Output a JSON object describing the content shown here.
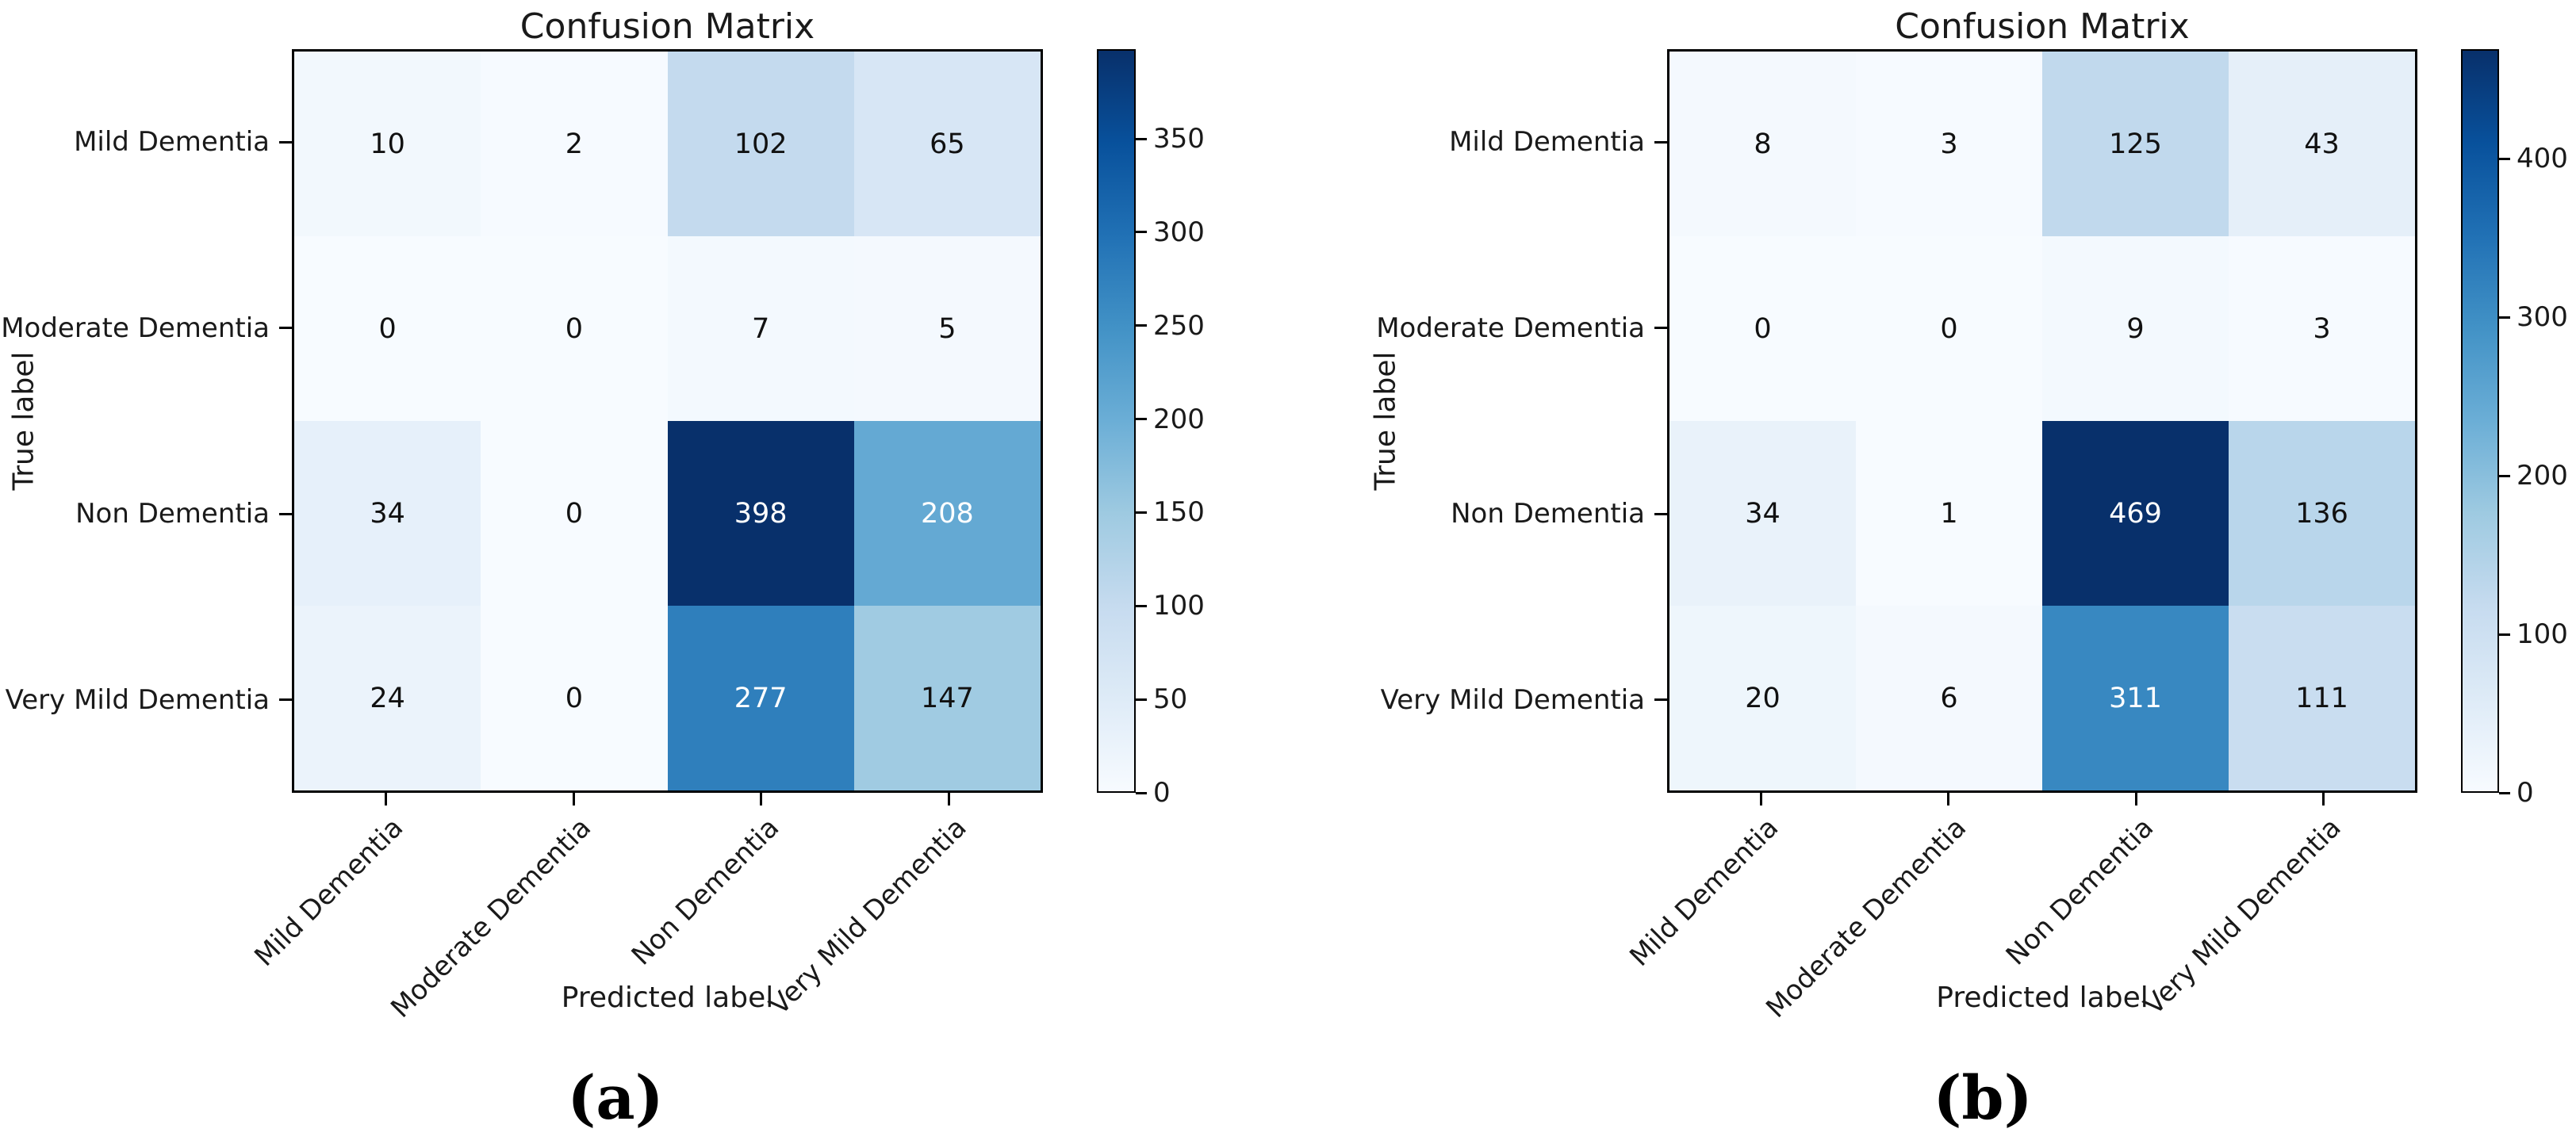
{
  "page": {
    "background": "#ffffff"
  },
  "colors": {
    "colormap_blues_anchors": [
      "#f7fbff",
      "#deebf7",
      "#c6dbef",
      "#9ecae1",
      "#6baed6",
      "#4292c6",
      "#2171b5",
      "#08519c",
      "#08306b"
    ],
    "cell_text_dark": "#111111",
    "cell_text_light": "#ffffff",
    "axis_text": "#1a1a1a",
    "spine": "#000000"
  },
  "chart_data": [
    {
      "type": "heatmap",
      "title": "Confusion Matrix",
      "caption": "(a)",
      "xlabel": "Predicted label",
      "ylabel": "True label",
      "x_categories": [
        "Mild Dementia",
        "Moderate Dementia",
        "Non Dementia",
        "Very Mild Dementia"
      ],
      "y_categories": [
        "Mild Dementia",
        "Moderate Dementia",
        "Non Dementia",
        "Very Mild Dementia"
      ],
      "values": [
        [
          10,
          2,
          102,
          65
        ],
        [
          0,
          0,
          7,
          5
        ],
        [
          34,
          0,
          398,
          208
        ],
        [
          24,
          0,
          277,
          147
        ]
      ],
      "vmin": 0,
      "vmax": 398,
      "colormap": "Blues",
      "grid": false,
      "x_tick_rotation_deg": 45,
      "colorbar": {
        "position": "right",
        "ticks": [
          0,
          50,
          100,
          150,
          200,
          250,
          300,
          350
        ]
      }
    },
    {
      "type": "heatmap",
      "title": "Confusion Matrix",
      "caption": "(b)",
      "xlabel": "Predicted label",
      "ylabel": "True label",
      "x_categories": [
        "Mild Dementia",
        "Moderate Dementia",
        "Non Dementia",
        "Very Mild Dementia"
      ],
      "y_categories": [
        "Mild Dementia",
        "Moderate Dementia",
        "Non Dementia",
        "Very Mild Dementia"
      ],
      "values": [
        [
          8,
          3,
          125,
          43
        ],
        [
          0,
          0,
          9,
          3
        ],
        [
          34,
          1,
          469,
          136
        ],
        [
          20,
          6,
          311,
          111
        ]
      ],
      "vmin": 0,
      "vmax": 469,
      "colormap": "Blues",
      "grid": false,
      "x_tick_rotation_deg": 45,
      "colorbar": {
        "position": "right",
        "ticks": [
          0,
          100,
          200,
          300,
          400
        ]
      }
    }
  ]
}
